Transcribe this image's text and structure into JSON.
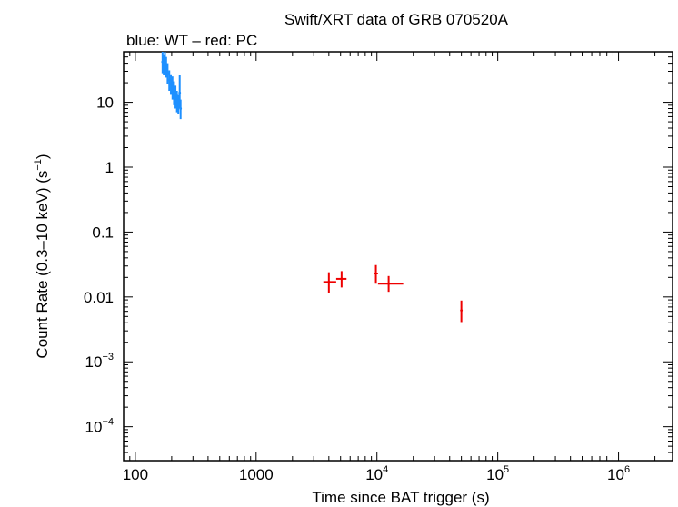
{
  "chart_data": {
    "type": "scatter",
    "title": "Swift/XRT data of GRB 070520A",
    "subtitle": "blue: WT – red: PC",
    "xlabel": "Time since BAT trigger (s)",
    "ylabel_main": "Count Rate (0.3–10 keV) (s",
    "ylabel_sup": "−1",
    "ylabel_end": ")",
    "xscale": "log",
    "yscale": "log",
    "xlim": [
      80,
      2800000
    ],
    "ylim": [
      3e-05,
      60
    ],
    "x_ticks": [
      {
        "value": 100,
        "base": "100",
        "exp": ""
      },
      {
        "value": 1000,
        "base": "1000",
        "exp": ""
      },
      {
        "value": 10000,
        "base": "10",
        "exp": "4"
      },
      {
        "value": 100000,
        "base": "10",
        "exp": "5"
      },
      {
        "value": 1000000,
        "base": "10",
        "exp": "6"
      }
    ],
    "y_ticks": [
      {
        "value": 10,
        "base": "10",
        "exp": ""
      },
      {
        "value": 1,
        "base": "1",
        "exp": ""
      },
      {
        "value": 0.1,
        "base": "0.1",
        "exp": ""
      },
      {
        "value": 0.01,
        "base": "0.01",
        "exp": ""
      },
      {
        "value": 0.001,
        "base": "10",
        "exp": "−3"
      },
      {
        "value": 0.0001,
        "base": "10",
        "exp": "−4"
      }
    ],
    "colors": {
      "wt": "#1e90ff",
      "pc": "#ee0000",
      "axis": "#000000"
    },
    "series": [
      {
        "mode": "WT",
        "color": "#1e90ff",
        "points": [
          {
            "x": 168,
            "xerr": [
              166,
              170
            ],
            "y": 42,
            "yerr": [
              28,
              60
            ]
          },
          {
            "x": 172,
            "xerr": [
              170,
              174
            ],
            "y": 38,
            "yerr": [
              26,
              55
            ]
          },
          {
            "x": 176,
            "xerr": [
              174,
              178
            ],
            "y": 45,
            "yerr": [
              32,
              60
            ]
          },
          {
            "x": 180,
            "xerr": [
              178,
              182
            ],
            "y": 35,
            "yerr": [
              24,
              50
            ]
          },
          {
            "x": 185,
            "xerr": [
              182,
              188
            ],
            "y": 28,
            "yerr": [
              19,
              40
            ]
          },
          {
            "x": 191,
            "xerr": [
              188,
              194
            ],
            "y": 22,
            "yerr": [
              15,
              31
            ]
          },
          {
            "x": 197,
            "xerr": [
              194,
              200
            ],
            "y": 19,
            "yerr": [
              13,
              27
            ]
          },
          {
            "x": 203,
            "xerr": [
              200,
              206
            ],
            "y": 17,
            "yerr": [
              11,
              25
            ]
          },
          {
            "x": 209,
            "xerr": [
              206,
              212
            ],
            "y": 14,
            "yerr": [
              9,
              21
            ]
          },
          {
            "x": 215,
            "xerr": [
              212,
              218
            ],
            "y": 12,
            "yerr": [
              8,
              18
            ]
          },
          {
            "x": 221,
            "xerr": [
              218,
              224
            ],
            "y": 10,
            "yerr": [
              7,
              15
            ]
          },
          {
            "x": 227,
            "xerr": [
              224,
              230
            ],
            "y": 9,
            "yerr": [
              6.5,
              13
            ]
          },
          {
            "x": 233,
            "xerr": [
              230,
              236
            ],
            "y": 14,
            "yerr": [
              8,
              26
            ]
          },
          {
            "x": 237,
            "xerr": [
              235,
              239
            ],
            "y": 8,
            "yerr": [
              5.5,
              11
            ]
          }
        ]
      },
      {
        "mode": "PC",
        "color": "#ee0000",
        "points": [
          {
            "x": 4000,
            "xerr": [
              3600,
              4600
            ],
            "y": 0.017,
            "yerr": [
              0.0115,
              0.024
            ]
          },
          {
            "x": 5100,
            "xerr": [
              4600,
              5600
            ],
            "y": 0.019,
            "yerr": [
              0.014,
              0.025
            ]
          },
          {
            "x": 9800,
            "xerr": [
              9500,
              10200
            ],
            "y": 0.023,
            "yerr": [
              0.016,
              0.031
            ]
          },
          {
            "x": 12500,
            "xerr": [
              10200,
              16500
            ],
            "y": 0.016,
            "yerr": [
              0.012,
              0.021
            ]
          },
          {
            "x": 50000,
            "xerr": [
              49500,
              50500
            ],
            "y": 0.0062,
            "yerr": [
              0.0041,
              0.0088
            ]
          }
        ]
      }
    ]
  }
}
